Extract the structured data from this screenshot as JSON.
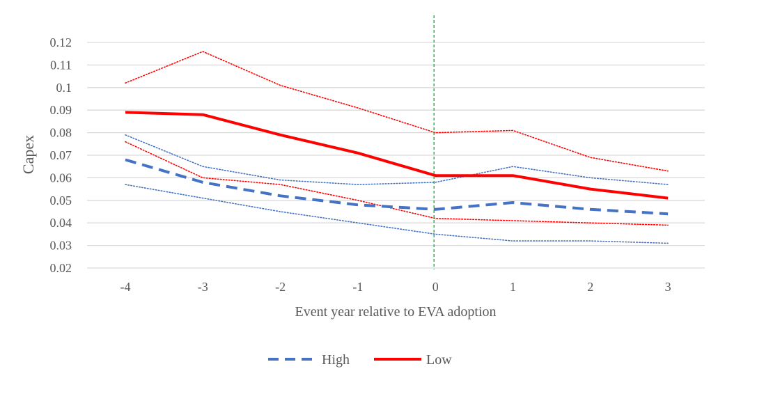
{
  "chart_data": {
    "type": "line",
    "title": "",
    "xlabel": "Event year relative to EVA adoption",
    "ylabel": "Capex",
    "x": [
      -4,
      -3,
      -2,
      -1,
      0,
      1,
      2,
      3
    ],
    "x_tick_labels": [
      "-4",
      "-3",
      "-2",
      "-1",
      "0",
      "1",
      "2",
      "3"
    ],
    "ylim": [
      0.02,
      0.12
    ],
    "y_ticks": [
      0.02,
      0.03,
      0.04,
      0.05,
      0.06,
      0.07,
      0.08,
      0.09,
      0.1,
      0.11,
      0.12
    ],
    "y_tick_labels": [
      "0.02",
      "0.03",
      "0.04",
      "0.05",
      "0.06",
      "0.07",
      "0.08",
      "0.09",
      "0.1",
      "0.11",
      "0.12"
    ],
    "grid": "horizontal",
    "legend_position": "bottom",
    "event_marker_x": 0,
    "series": [
      {
        "name": "High",
        "color": "#4472C4",
        "style": "dashed",
        "values": [
          0.068,
          0.058,
          0.052,
          0.048,
          0.046,
          0.049,
          0.046,
          0.044
        ]
      },
      {
        "name": "Low",
        "color": "#FF0000",
        "style": "solid",
        "values": [
          0.089,
          0.088,
          0.079,
          0.071,
          0.061,
          0.061,
          0.055,
          0.051
        ]
      }
    ],
    "bands": [
      {
        "color": "#4472C4",
        "values": [
          0.079,
          0.065,
          0.059,
          0.057,
          0.058,
          0.065,
          0.06,
          0.057
        ]
      },
      {
        "color": "#4472C4",
        "values": [
          0.057,
          0.051,
          0.045,
          0.04,
          0.035,
          0.032,
          0.032,
          0.031
        ]
      },
      {
        "color": "#FF0000",
        "values": [
          0.102,
          0.116,
          0.101,
          0.091,
          0.08,
          0.081,
          0.069,
          0.063
        ]
      },
      {
        "color": "#FF0000",
        "values": [
          0.076,
          0.06,
          0.057,
          0.05,
          0.042,
          0.041,
          0.04,
          0.039
        ]
      }
    ],
    "marker_color": "#2CB34A"
  }
}
